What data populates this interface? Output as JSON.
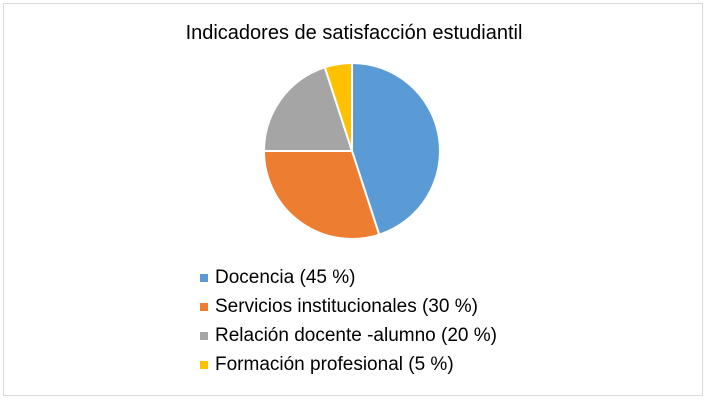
{
  "chart_data": {
    "type": "pie",
    "title": "Indicadores de satisfacción estudiantil",
    "slices": [
      {
        "label": "Docencia (45 %)",
        "value": 45,
        "color": "#5b9bd5"
      },
      {
        "label": "Servicios institucionales (30 %)",
        "value": 30,
        "color": "#ed7d31"
      },
      {
        "label": "Relación docente -alumno (20 %)",
        "value": 20,
        "color": "#a5a5a5"
      },
      {
        "label": "Formación profesional (5 %)",
        "value": 5,
        "color": "#ffc000"
      }
    ],
    "legend_position": "bottom"
  }
}
